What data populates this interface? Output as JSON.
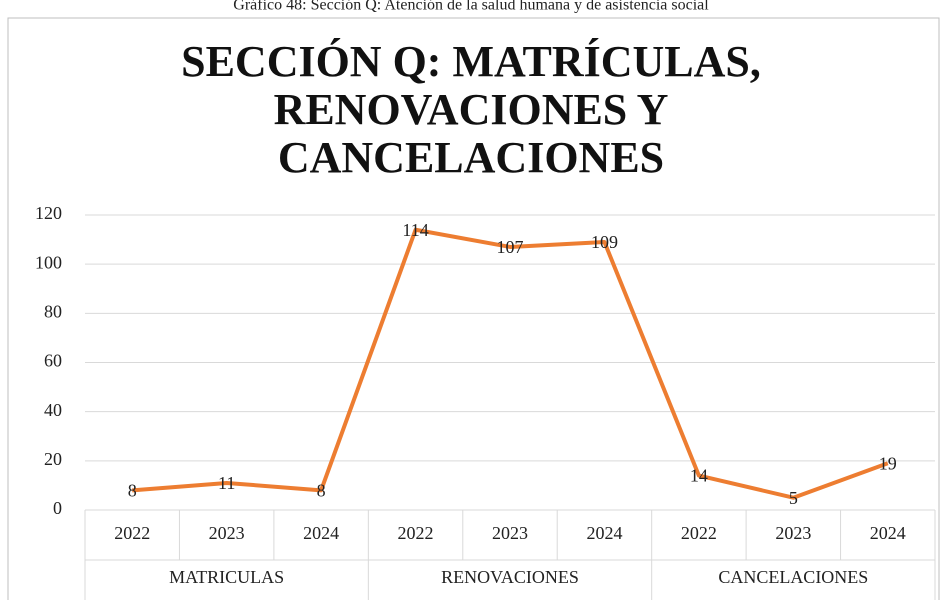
{
  "caption": "Gráfico 48: Sección Q: Atención de la salud humana y de asistencia social",
  "chart_data": {
    "type": "line",
    "title": "SECCIÓN Q: MATRÍCULAS, RENOVACIONES Y CANCELACIONES",
    "categories": [
      "2022",
      "2023",
      "2024",
      "2022",
      "2023",
      "2024",
      "2022",
      "2023",
      "2024"
    ],
    "groups": [
      "MATRICULAS",
      "RENOVACIONES",
      "CANCELACIONES"
    ],
    "values": [
      8,
      11,
      8,
      114,
      107,
      109,
      14,
      5,
      19
    ],
    "color": "#ed7d31",
    "ylim": [
      0,
      120
    ],
    "yticks": [
      0,
      20,
      40,
      60,
      80,
      100,
      120
    ],
    "grid": true
  }
}
